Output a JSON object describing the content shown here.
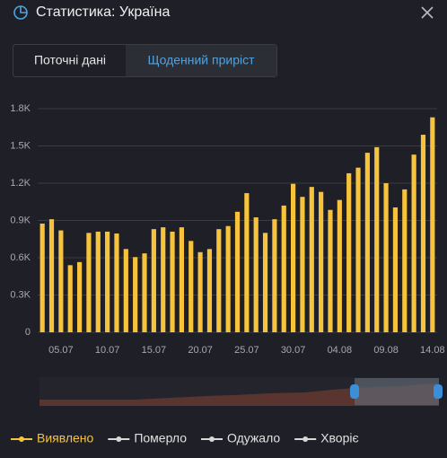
{
  "header": {
    "title": "Статистика: Україна"
  },
  "tabs": [
    "Поточні дані",
    "Щоденний приріст"
  ],
  "chart_data": {
    "type": "bar",
    "categories": [
      null,
      null,
      "05.07",
      null,
      null,
      null,
      null,
      "10.07",
      null,
      null,
      null,
      null,
      "15.07",
      null,
      null,
      null,
      null,
      "20.07",
      null,
      null,
      null,
      null,
      "25.07",
      null,
      null,
      null,
      null,
      "30.07",
      null,
      null,
      null,
      null,
      "04.08",
      null,
      null,
      null,
      null,
      "09.08",
      null,
      null,
      null,
      null,
      "14.08"
    ],
    "series": [
      {
        "name": "Виявлено",
        "color": "#f7c33c",
        "values": [
          875,
          910,
          820,
          540,
          565,
          800,
          810,
          810,
          795,
          670,
          605,
          635,
          830,
          845,
          810,
          845,
          735,
          645,
          670,
          830,
          855,
          970,
          1120,
          925,
          800,
          910,
          1020,
          1195,
          1090,
          1170,
          1130,
          985,
          1065,
          1280,
          1325,
          1445,
          1490,
          1200,
          1005,
          1150,
          1430,
          1590,
          1730
        ]
      }
    ],
    "legend": [
      {
        "name": "Виявлено",
        "color": "#f7c33c"
      },
      {
        "name": "Померло",
        "color": "#d8d8d8"
      },
      {
        "name": "Одужало",
        "color": "#d8d8d8"
      },
      {
        "name": "Хворіє",
        "color": "#d8d8d8"
      }
    ],
    "ylim": [
      0,
      1800
    ],
    "yticks": [
      0,
      {
        "value": 300,
        "label": "0.3K"
      },
      {
        "value": 600,
        "label": "0.6K"
      },
      {
        "value": 900,
        "label": "0.9K"
      },
      {
        "value": 1200,
        "label": "1.2K"
      },
      {
        "value": 1500,
        "label": "1.5K"
      },
      {
        "value": 1800,
        "label": "1.8K"
      }
    ],
    "grid": true
  }
}
